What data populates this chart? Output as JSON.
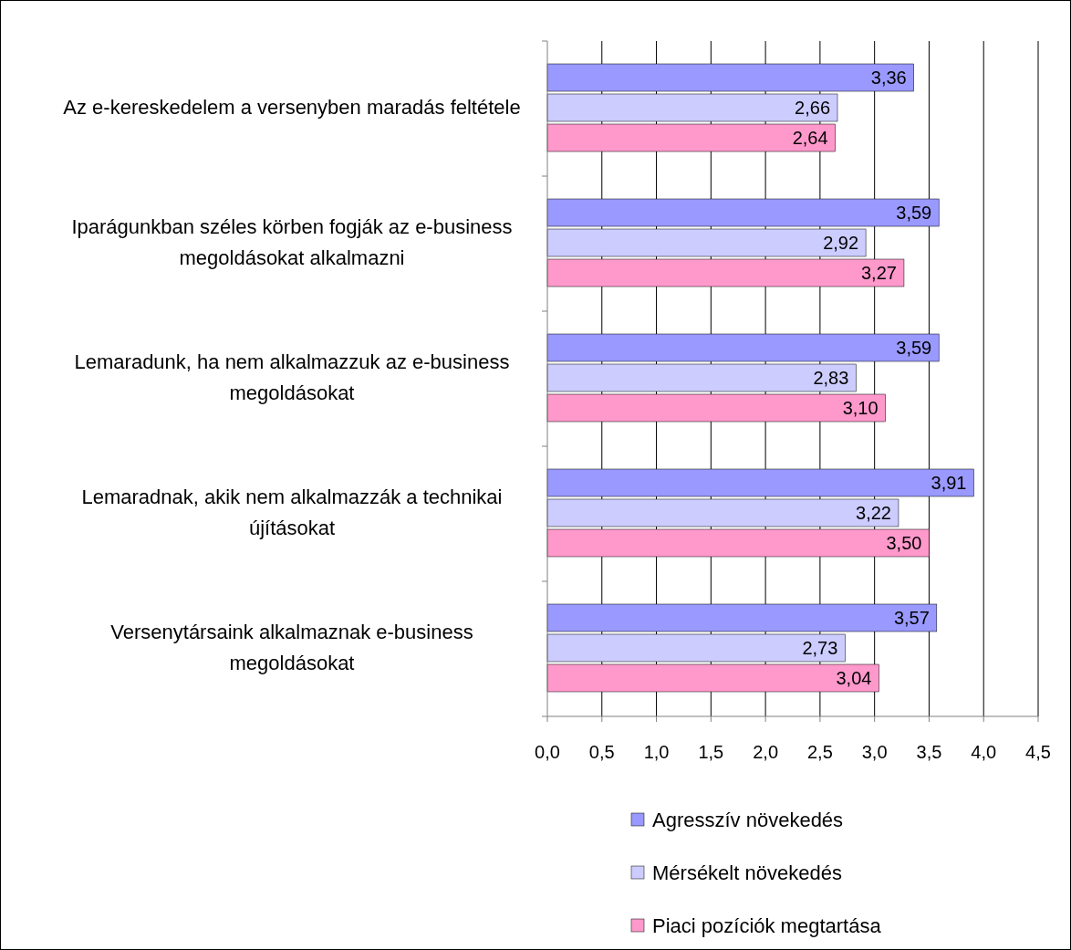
{
  "chart_data": {
    "type": "bar",
    "orientation": "horizontal",
    "categories": [
      "Az e-kereskedelem a versenyben maradás feltétele",
      "Iparágunkban széles körben fogják az e-business megoldásokat alkalmazni",
      "Lemaradunk, ha nem alkalmazzuk az e-business megoldásokat",
      "Lemaradnak, akik nem alkalmazzák a technikai újításokat",
      "Versenytársaink alkalmaznak e-business megoldásokat"
    ],
    "series": [
      {
        "name": "Agresszív növekedés",
        "color": "#9999ff",
        "values": [
          3.36,
          3.59,
          3.59,
          3.91,
          3.57
        ],
        "value_labels": [
          "3,36",
          "3,59",
          "3,59",
          "3,91",
          "3,57"
        ]
      },
      {
        "name": "Mérsékelt növekedés",
        "color": "#ccccff",
        "values": [
          2.66,
          2.92,
          2.83,
          3.22,
          2.73
        ],
        "value_labels": [
          "2,66",
          "2,92",
          "2,83",
          "3,22",
          "2,73"
        ]
      },
      {
        "name": "Piaci pozíciók megtartása",
        "color": "#ff99cc",
        "values": [
          2.64,
          3.27,
          3.1,
          3.5,
          3.04
        ],
        "value_labels": [
          "2,64",
          "3,27",
          "3,10",
          "3,50",
          "3,04"
        ]
      }
    ],
    "xlim": [
      0,
      4.5
    ],
    "xticks": [
      {
        "value": 0,
        "label": "0,0"
      },
      {
        "value": 0.5,
        "label": "0,5"
      },
      {
        "value": 1,
        "label": "1,0"
      },
      {
        "value": 1.5,
        "label": "1,5"
      },
      {
        "value": 2,
        "label": "2,0"
      },
      {
        "value": 2.5,
        "label": "2,5"
      },
      {
        "value": 3,
        "label": "3,0"
      },
      {
        "value": 3.5,
        "label": "3,5"
      },
      {
        "value": 4,
        "label": "4,0"
      },
      {
        "value": 4.5,
        "label": "4,5"
      }
    ],
    "grid": "x",
    "legend": "bottom"
  }
}
